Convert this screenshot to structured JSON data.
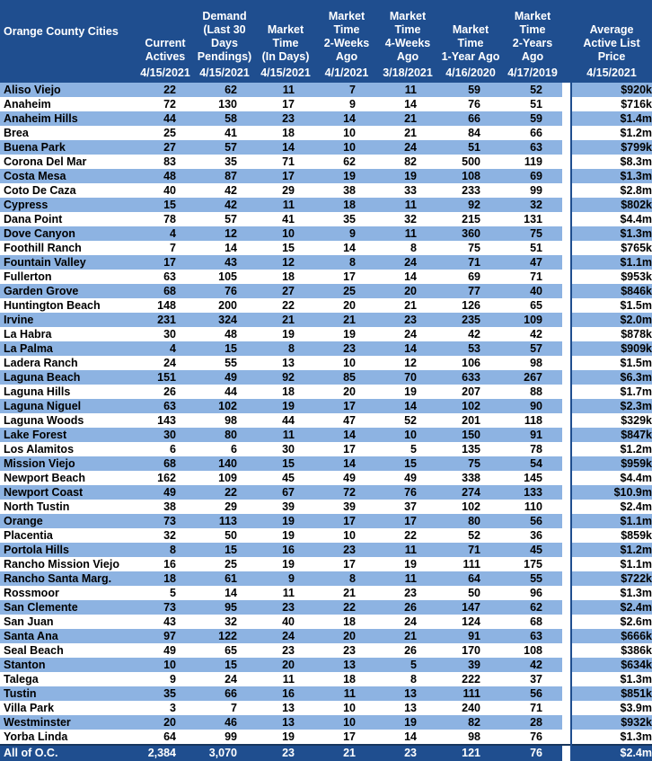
{
  "columns": {
    "city": "Orange County Cities",
    "actives": [
      "Current",
      "Actives"
    ],
    "demand": [
      "Demand",
      "(Last 30",
      "Days",
      "Pendings)"
    ],
    "market_time": [
      "Market",
      "Time",
      "(In Days)"
    ],
    "two_weeks": [
      "Market",
      "Time",
      "2-Weeks",
      "Ago"
    ],
    "four_weeks": [
      "Market",
      "Time",
      "4-Weeks",
      "Ago"
    ],
    "one_year": [
      "Market",
      "Time",
      "1-Year Ago"
    ],
    "two_years": [
      "Market",
      "Time",
      "2-Years",
      "Ago"
    ],
    "price": [
      "Average",
      "Active List",
      "Price"
    ]
  },
  "dates": {
    "actives": "4/15/2021",
    "demand": "4/15/2021",
    "market_time": "4/15/2021",
    "two_weeks": "4/1/2021",
    "four_weeks": "3/18/2021",
    "one_year": "4/16/2020",
    "two_years": "4/17/2019",
    "price": "4/15/2021"
  },
  "rows": [
    [
      "Aliso Viejo",
      "22",
      "62",
      "11",
      "7",
      "11",
      "59",
      "52",
      "$920k"
    ],
    [
      "Anaheim",
      "72",
      "130",
      "17",
      "9",
      "14",
      "76",
      "51",
      "$716k"
    ],
    [
      "Anaheim Hills",
      "44",
      "58",
      "23",
      "14",
      "21",
      "66",
      "59",
      "$1.4m"
    ],
    [
      "Brea",
      "25",
      "41",
      "18",
      "10",
      "21",
      "84",
      "66",
      "$1.2m"
    ],
    [
      "Buena Park",
      "27",
      "57",
      "14",
      "10",
      "24",
      "51",
      "63",
      "$799k"
    ],
    [
      "Corona Del Mar",
      "83",
      "35",
      "71",
      "62",
      "82",
      "500",
      "119",
      "$8.3m"
    ],
    [
      "Costa Mesa",
      "48",
      "87",
      "17",
      "19",
      "19",
      "108",
      "69",
      "$1.3m"
    ],
    [
      "Coto De Caza",
      "40",
      "42",
      "29",
      "38",
      "33",
      "233",
      "99",
      "$2.8m"
    ],
    [
      "Cypress",
      "15",
      "42",
      "11",
      "18",
      "11",
      "92",
      "32",
      "$802k"
    ],
    [
      "Dana Point",
      "78",
      "57",
      "41",
      "35",
      "32",
      "215",
      "131",
      "$4.4m"
    ],
    [
      "Dove Canyon",
      "4",
      "12",
      "10",
      "9",
      "11",
      "360",
      "75",
      "$1.3m"
    ],
    [
      "Foothill Ranch",
      "7",
      "14",
      "15",
      "14",
      "8",
      "75",
      "51",
      "$765k"
    ],
    [
      "Fountain Valley",
      "17",
      "43",
      "12",
      "8",
      "24",
      "71",
      "47",
      "$1.1m"
    ],
    [
      "Fullerton",
      "63",
      "105",
      "18",
      "17",
      "14",
      "69",
      "71",
      "$953k"
    ],
    [
      "Garden Grove",
      "68",
      "76",
      "27",
      "25",
      "20",
      "77",
      "40",
      "$846k"
    ],
    [
      "Huntington Beach",
      "148",
      "200",
      "22",
      "20",
      "21",
      "126",
      "65",
      "$1.5m"
    ],
    [
      "Irvine",
      "231",
      "324",
      "21",
      "21",
      "23",
      "235",
      "109",
      "$2.0m"
    ],
    [
      "La Habra",
      "30",
      "48",
      "19",
      "19",
      "24",
      "42",
      "42",
      "$878k"
    ],
    [
      "La Palma",
      "4",
      "15",
      "8",
      "23",
      "14",
      "53",
      "57",
      "$909k"
    ],
    [
      "Ladera Ranch",
      "24",
      "55",
      "13",
      "10",
      "12",
      "106",
      "98",
      "$1.5m"
    ],
    [
      "Laguna Beach",
      "151",
      "49",
      "92",
      "85",
      "70",
      "633",
      "267",
      "$6.3m"
    ],
    [
      "Laguna Hills",
      "26",
      "44",
      "18",
      "20",
      "19",
      "207",
      "88",
      "$1.7m"
    ],
    [
      "Laguna Niguel",
      "63",
      "102",
      "19",
      "17",
      "14",
      "102",
      "90",
      "$2.3m"
    ],
    [
      "Laguna Woods",
      "143",
      "98",
      "44",
      "47",
      "52",
      "201",
      "118",
      "$329k"
    ],
    [
      "Lake Forest",
      "30",
      "80",
      "11",
      "14",
      "10",
      "150",
      "91",
      "$847k"
    ],
    [
      "Los Alamitos",
      "6",
      "6",
      "30",
      "17",
      "5",
      "135",
      "78",
      "$1.2m"
    ],
    [
      "Mission Viejo",
      "68",
      "140",
      "15",
      "14",
      "15",
      "75",
      "54",
      "$959k"
    ],
    [
      "Newport Beach",
      "162",
      "109",
      "45",
      "49",
      "49",
      "338",
      "145",
      "$4.4m"
    ],
    [
      "Newport Coast",
      "49",
      "22",
      "67",
      "72",
      "76",
      "274",
      "133",
      "$10.9m"
    ],
    [
      "North Tustin",
      "38",
      "29",
      "39",
      "39",
      "37",
      "102",
      "110",
      "$2.4m"
    ],
    [
      "Orange",
      "73",
      "113",
      "19",
      "17",
      "17",
      "80",
      "56",
      "$1.1m"
    ],
    [
      "Placentia",
      "32",
      "50",
      "19",
      "10",
      "22",
      "52",
      "36",
      "$859k"
    ],
    [
      "Portola Hills",
      "8",
      "15",
      "16",
      "23",
      "11",
      "71",
      "45",
      "$1.2m"
    ],
    [
      "Rancho Mission Viejo",
      "16",
      "25",
      "19",
      "17",
      "19",
      "111",
      "175",
      "$1.1m"
    ],
    [
      "Rancho Santa Marg.",
      "18",
      "61",
      "9",
      "8",
      "11",
      "64",
      "55",
      "$722k"
    ],
    [
      "Rossmoor",
      "5",
      "14",
      "11",
      "21",
      "23",
      "50",
      "96",
      "$1.3m"
    ],
    [
      "San Clemente",
      "73",
      "95",
      "23",
      "22",
      "26",
      "147",
      "62",
      "$2.4m"
    ],
    [
      "San Juan",
      "43",
      "32",
      "40",
      "18",
      "24",
      "124",
      "68",
      "$2.6m"
    ],
    [
      "Santa Ana",
      "97",
      "122",
      "24",
      "20",
      "21",
      "91",
      "63",
      "$666k"
    ],
    [
      "Seal Beach",
      "49",
      "65",
      "23",
      "23",
      "26",
      "170",
      "108",
      "$386k"
    ],
    [
      "Stanton",
      "10",
      "15",
      "20",
      "13",
      "5",
      "39",
      "42",
      "$634k"
    ],
    [
      "Talega",
      "9",
      "24",
      "11",
      "18",
      "8",
      "222",
      "37",
      "$1.3m"
    ],
    [
      "Tustin",
      "35",
      "66",
      "16",
      "11",
      "13",
      "111",
      "56",
      "$851k"
    ],
    [
      "Villa Park",
      "3",
      "7",
      "13",
      "10",
      "13",
      "240",
      "71",
      "$3.9m"
    ],
    [
      "Westminster",
      "20",
      "46",
      "13",
      "10",
      "19",
      "82",
      "28",
      "$932k"
    ],
    [
      "Yorba Linda",
      "64",
      "99",
      "19",
      "17",
      "14",
      "98",
      "76",
      "$1.3m"
    ]
  ],
  "total": [
    "All of O.C.",
    "2,384",
    "3,070",
    "23",
    "21",
    "23",
    "121",
    "76",
    "$2.4m"
  ],
  "colors": {
    "header": "#1f4e8f",
    "band": "#8db3e2",
    "white": "#ffffff"
  }
}
